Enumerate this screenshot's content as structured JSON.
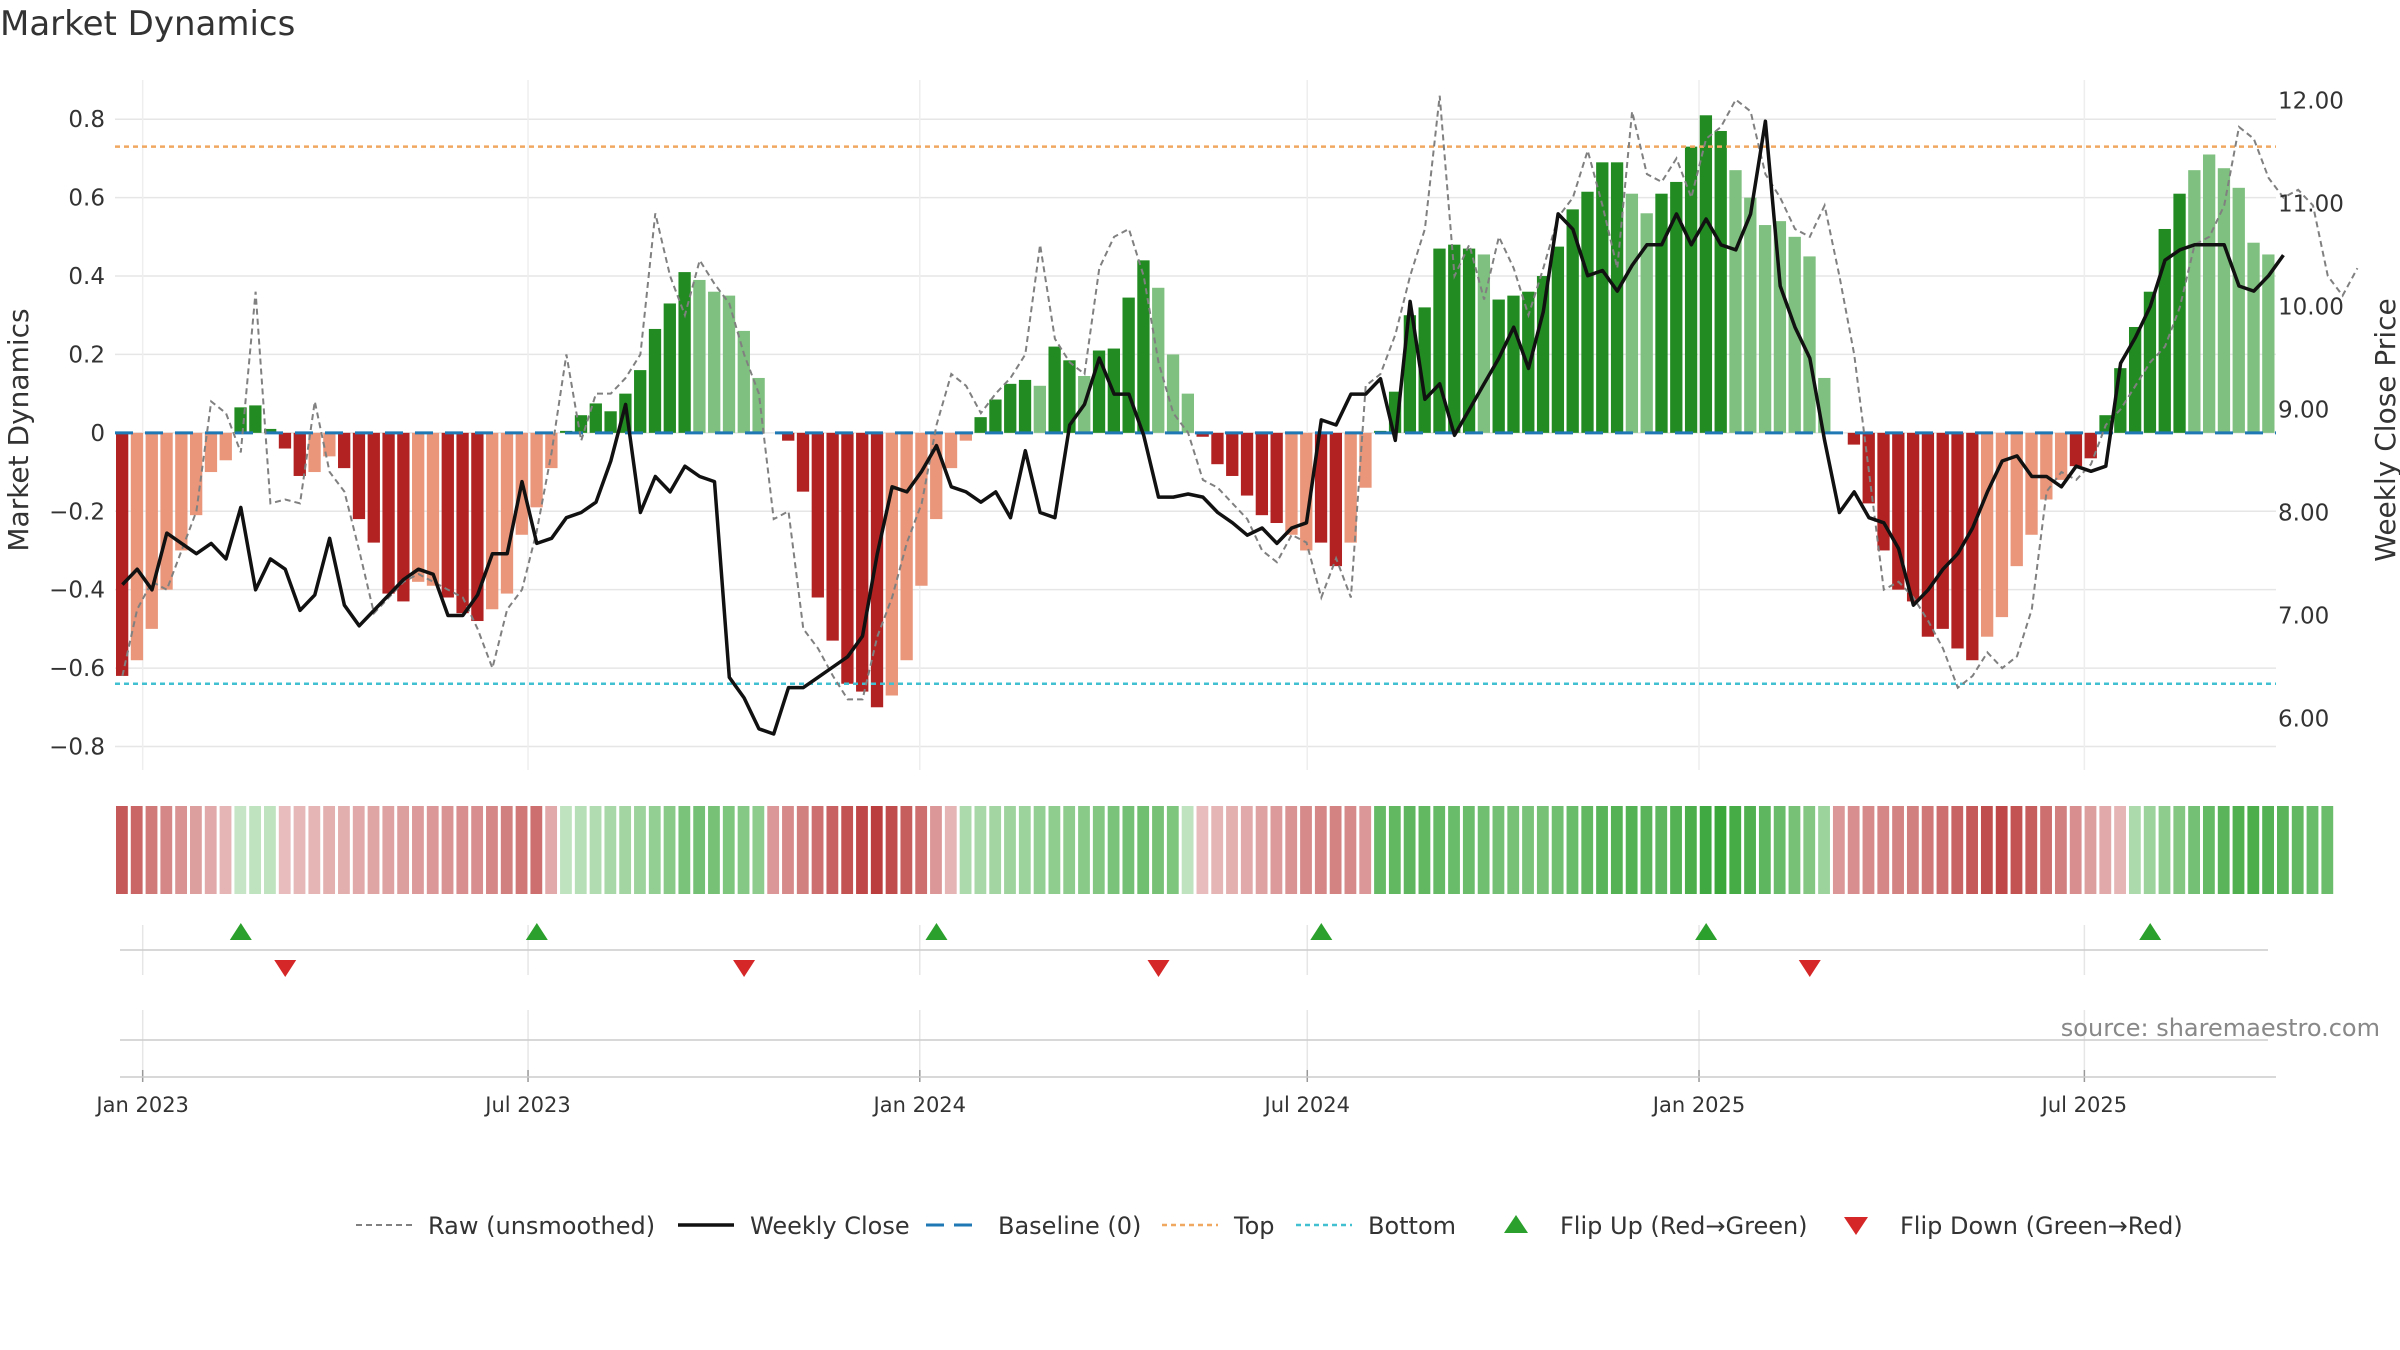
{
  "chart_data": {
    "type": "bar",
    "title": "Market Dynamics",
    "source": "source: sharemaestro.com",
    "ylabel_left": "Market Dynamics",
    "ylabel_right": "Weekly Close Price",
    "ylim_left": [
      -0.86,
      0.9
    ],
    "ylim_right": [
      5.5,
      12.2
    ],
    "yticks_left": [
      "0.8",
      "0.6",
      "0.4",
      "0.2",
      "0",
      "−0.2",
      "−0.4",
      "−0.6",
      "−0.8"
    ],
    "yticks_right": [
      "12.00",
      "11.00",
      "10.00",
      "9.00",
      "8.00",
      "7.00",
      "6.00"
    ],
    "x_tick_labels": [
      "Jan 2023",
      "Jul 2023",
      "Jan 2024",
      "Jul 2024",
      "Jan 2025",
      "Jul 2025"
    ],
    "x_start": "2022-12-19",
    "x_end": "2025-09-29",
    "top_line": 0.73,
    "bottom_line": -0.64,
    "colors": {
      "pos_strong": "#228b22",
      "pos_weak": "#7fbf7f",
      "neg_strong": "#b22222",
      "neg_weak": "#e9967a",
      "close": "#111111",
      "raw": "#808080",
      "baseline": "#1f77b4",
      "top": "#f0a860",
      "bottom": "#40c0d0",
      "flip_up": "#2ca02c",
      "flip_down": "#d62728"
    },
    "series": [
      {
        "name": "Raw (unsmoothed)",
        "values": [
          -0.62,
          -0.45,
          -0.38,
          -0.4,
          -0.3,
          -0.2,
          0.08,
          0.05,
          -0.05,
          0.36,
          -0.18,
          -0.17,
          -0.18,
          0.08,
          -0.1,
          -0.15,
          -0.3,
          -0.46,
          -0.42,
          -0.38,
          -0.36,
          -0.38,
          -0.4,
          -0.42,
          -0.5,
          -0.6,
          -0.45,
          -0.4,
          -0.25,
          -0.05,
          0.2,
          -0.02,
          0.1,
          0.1,
          0.14,
          0.2,
          0.56,
          0.4,
          0.3,
          0.44,
          0.38,
          0.33,
          0.2,
          0.1,
          -0.22,
          -0.2,
          -0.5,
          -0.55,
          -0.62,
          -0.68,
          -0.68,
          -0.52,
          -0.42,
          -0.28,
          -0.18,
          0.02,
          0.15,
          0.12,
          0.05,
          0.1,
          0.14,
          0.2,
          0.48,
          0.24,
          0.18,
          0.15,
          0.42,
          0.5,
          0.52,
          0.4,
          0.18,
          0.05,
          0.0,
          -0.12,
          -0.14,
          -0.18,
          -0.22,
          -0.3,
          -0.33,
          -0.26,
          -0.28,
          -0.42,
          -0.32,
          -0.42,
          0.12,
          0.15,
          0.25,
          0.4,
          0.52,
          0.86,
          0.4,
          0.48,
          0.34,
          0.5,
          0.42,
          0.3,
          0.42,
          0.55,
          0.6,
          0.72,
          0.58,
          0.42,
          0.82,
          0.66,
          0.64,
          0.7,
          0.6,
          0.75,
          0.78,
          0.85,
          0.82,
          0.66,
          0.6,
          0.52,
          0.5,
          0.58,
          0.4,
          0.2,
          -0.1,
          -0.4,
          -0.38,
          -0.42,
          -0.48,
          -0.55,
          -0.65,
          -0.62,
          -0.56,
          -0.6,
          -0.57,
          -0.45,
          -0.15,
          -0.1,
          -0.12,
          -0.08,
          0.02,
          0.06,
          0.12,
          0.18,
          0.22,
          0.32,
          0.48,
          0.5,
          0.58,
          0.78,
          0.75,
          0.65,
          0.6,
          0.62,
          0.58,
          0.4,
          0.35,
          0.42
        ]
      },
      {
        "name": "Weekly Close",
        "values": [
          7.3,
          7.45,
          7.25,
          7.8,
          7.7,
          7.6,
          7.7,
          7.55,
          8.05,
          7.25,
          7.55,
          7.45,
          7.05,
          7.2,
          7.75,
          7.1,
          6.9,
          7.05,
          7.2,
          7.35,
          7.45,
          7.4,
          7.0,
          7.0,
          7.2,
          7.6,
          7.6,
          8.3,
          7.7,
          7.75,
          7.95,
          8.0,
          8.1,
          8.5,
          9.05,
          8.0,
          8.35,
          8.2,
          8.45,
          8.35,
          8.3,
          6.4,
          6.2,
          5.9,
          5.85,
          6.3,
          6.3,
          6.4,
          6.5,
          6.6,
          6.8,
          7.6,
          8.25,
          8.2,
          8.4,
          8.65,
          8.25,
          8.2,
          8.1,
          8.2,
          7.95,
          8.6,
          8.0,
          7.95,
          8.85,
          9.05,
          9.5,
          9.15,
          9.15,
          8.75,
          8.15,
          8.15,
          8.18,
          8.15,
          8.0,
          7.9,
          7.78,
          7.85,
          7.7,
          7.85,
          7.9,
          8.9,
          8.85,
          9.15,
          9.15,
          9.3,
          8.7,
          10.05,
          9.1,
          9.25,
          8.75,
          9.0,
          9.25,
          9.5,
          9.8,
          9.4,
          9.95,
          10.9,
          10.75,
          10.3,
          10.35,
          10.15,
          10.4,
          10.6,
          10.6,
          10.9,
          10.6,
          10.85,
          10.6,
          10.55,
          10.9,
          11.8,
          10.2,
          9.8,
          9.5,
          8.7,
          8.0,
          8.2,
          7.95,
          7.9,
          7.65,
          7.1,
          7.25,
          7.45,
          7.6,
          7.85,
          8.2,
          8.5,
          8.55,
          8.35,
          8.35,
          8.25,
          8.45,
          8.4,
          8.45,
          9.45,
          9.7,
          10.0,
          10.45,
          10.55,
          10.6,
          10.6,
          10.6,
          10.2,
          10.15,
          10.3,
          10.5
        ]
      },
      {
        "name": "Baseline (0)"
      },
      {
        "name": "Top"
      },
      {
        "name": "Bottom"
      },
      {
        "name": "Flip Up (Red→Green)"
      },
      {
        "name": "Flip Down (Green→Red)"
      }
    ],
    "bar_values": [
      -0.62,
      -0.58,
      -0.5,
      -0.4,
      -0.3,
      -0.21,
      -0.1,
      -0.07,
      0.065,
      0.07,
      0.01,
      -0.04,
      -0.11,
      -0.1,
      -0.06,
      -0.09,
      -0.22,
      -0.28,
      -0.41,
      -0.43,
      -0.38,
      -0.39,
      -0.42,
      -0.46,
      -0.48,
      -0.45,
      -0.41,
      -0.26,
      -0.19,
      -0.09,
      0.005,
      0.045,
      0.075,
      0.055,
      0.1,
      0.16,
      0.265,
      0.33,
      0.41,
      0.39,
      0.36,
      0.35,
      0.26,
      0.14,
      0.0,
      -0.02,
      -0.15,
      -0.42,
      -0.53,
      -0.64,
      -0.66,
      -0.7,
      -0.67,
      -0.58,
      -0.39,
      -0.22,
      -0.09,
      -0.02,
      0.04,
      0.085,
      0.125,
      0.135,
      0.12,
      0.22,
      0.185,
      0.145,
      0.21,
      0.215,
      0.345,
      0.44,
      0.37,
      0.2,
      0.1,
      -0.01,
      -0.08,
      -0.11,
      -0.16,
      -0.21,
      -0.23,
      -0.26,
      -0.3,
      -0.28,
      -0.34,
      -0.28,
      -0.14,
      0.005,
      0.105,
      0.3,
      0.32,
      0.47,
      0.48,
      0.47,
      0.455,
      0.34,
      0.35,
      0.36,
      0.4,
      0.475,
      0.57,
      0.615,
      0.69,
      0.69,
      0.61,
      0.56,
      0.61,
      0.64,
      0.73,
      0.81,
      0.77,
      0.67,
      0.6,
      0.53,
      0.54,
      0.5,
      0.45,
      0.14,
      0.0,
      -0.03,
      -0.18,
      -0.3,
      -0.4,
      -0.43,
      -0.52,
      -0.5,
      -0.55,
      -0.58,
      -0.52,
      -0.47,
      -0.34,
      -0.26,
      -0.17,
      -0.12,
      -0.085,
      -0.065,
      0.045,
      0.165,
      0.27,
      0.36,
      0.52,
      0.61,
      0.67,
      0.71,
      0.675,
      0.625,
      0.485,
      0.455
    ],
    "bar_shades": [
      1,
      2,
      2,
      2,
      2,
      2,
      2,
      2,
      1,
      1,
      1,
      1,
      1,
      2,
      2,
      1,
      1,
      1,
      1,
      1,
      2,
      2,
      1,
      1,
      1,
      2,
      2,
      2,
      2,
      2,
      1,
      1,
      1,
      1,
      1,
      1,
      1,
      1,
      1,
      2,
      2,
      2,
      2,
      2,
      1,
      1,
      1,
      1,
      1,
      1,
      1,
      1,
      2,
      2,
      2,
      2,
      2,
      2,
      1,
      1,
      1,
      1,
      2,
      1,
      1,
      2,
      1,
      1,
      1,
      1,
      2,
      2,
      2,
      1,
      1,
      1,
      1,
      1,
      1,
      2,
      2,
      1,
      1,
      2,
      2,
      1,
      1,
      1,
      1,
      1,
      1,
      1,
      2,
      1,
      1,
      1,
      1,
      1,
      1,
      1,
      1,
      1,
      2,
      2,
      1,
      1,
      1,
      1,
      1,
      2,
      2,
      2,
      2,
      2,
      2,
      2,
      1,
      1,
      1,
      1,
      1,
      1,
      1,
      1,
      1,
      1,
      2,
      2,
      2,
      2,
      2,
      2,
      1,
      1,
      1,
      1,
      1,
      1,
      1,
      1,
      2,
      2,
      2,
      2,
      2,
      2
    ],
    "heat_strip": [
      -0.62,
      -0.55,
      -0.45,
      -0.38,
      -0.32,
      -0.26,
      -0.2,
      -0.14,
      0.06,
      0.09,
      0.1,
      -0.1,
      -0.12,
      -0.14,
      -0.16,
      -0.18,
      -0.2,
      -0.22,
      -0.24,
      -0.26,
      -0.28,
      -0.3,
      -0.32,
      -0.34,
      -0.34,
      -0.38,
      -0.42,
      -0.46,
      -0.5,
      -0.2,
      0.1,
      0.14,
      0.18,
      0.22,
      0.26,
      0.3,
      0.34,
      0.4,
      0.48,
      0.52,
      0.5,
      0.46,
      0.42,
      0.38,
      -0.3,
      -0.36,
      -0.42,
      -0.5,
      -0.58,
      -0.66,
      -0.72,
      -0.78,
      -0.7,
      -0.6,
      -0.5,
      -0.3,
      -0.14,
      0.2,
      0.22,
      0.26,
      0.28,
      0.3,
      0.34,
      0.36,
      0.38,
      0.4,
      0.44,
      0.48,
      0.52,
      0.54,
      0.5,
      0.46,
      0.1,
      -0.1,
      -0.14,
      -0.16,
      -0.2,
      -0.24,
      -0.28,
      -0.32,
      -0.36,
      -0.38,
      -0.4,
      -0.36,
      -0.3,
      0.6,
      0.62,
      0.64,
      0.62,
      0.6,
      0.58,
      0.56,
      0.54,
      0.52,
      0.5,
      0.48,
      0.5,
      0.54,
      0.58,
      0.62,
      0.66,
      0.7,
      0.7,
      0.66,
      0.64,
      0.7,
      0.74,
      0.8,
      0.84,
      0.78,
      0.72,
      0.64,
      0.58,
      0.5,
      0.44,
      0.3,
      -0.3,
      -0.34,
      -0.36,
      -0.38,
      -0.4,
      -0.42,
      -0.46,
      -0.5,
      -0.56,
      -0.62,
      -0.68,
      -0.72,
      -0.66,
      -0.6,
      -0.5,
      -0.42,
      -0.34,
      -0.26,
      -0.2,
      -0.14,
      0.2,
      0.3,
      0.38,
      0.44,
      0.52,
      0.6,
      0.66,
      0.72,
      0.74,
      0.7,
      0.66,
      0.62,
      0.58,
      0.56
    ],
    "flips_up": [
      8,
      28,
      55,
      81,
      107,
      137
    ],
    "flips_down": [
      11,
      42,
      70,
      114
    ]
  }
}
